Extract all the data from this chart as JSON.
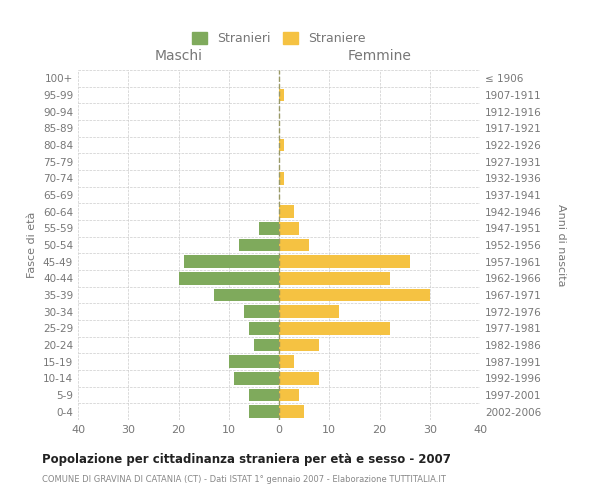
{
  "age_groups": [
    "0-4",
    "5-9",
    "10-14",
    "15-19",
    "20-24",
    "25-29",
    "30-34",
    "35-39",
    "40-44",
    "45-49",
    "50-54",
    "55-59",
    "60-64",
    "65-69",
    "70-74",
    "75-79",
    "80-84",
    "85-89",
    "90-94",
    "95-99",
    "100+"
  ],
  "birth_years": [
    "2002-2006",
    "1997-2001",
    "1992-1996",
    "1987-1991",
    "1982-1986",
    "1977-1981",
    "1972-1976",
    "1967-1971",
    "1962-1966",
    "1957-1961",
    "1952-1956",
    "1947-1951",
    "1942-1946",
    "1937-1941",
    "1932-1936",
    "1927-1931",
    "1922-1926",
    "1917-1921",
    "1912-1916",
    "1907-1911",
    "≤ 1906"
  ],
  "males": [
    6,
    6,
    9,
    10,
    5,
    6,
    7,
    13,
    20,
    19,
    8,
    4,
    0,
    0,
    0,
    0,
    0,
    0,
    0,
    0,
    0
  ],
  "females": [
    5,
    4,
    8,
    3,
    8,
    22,
    12,
    30,
    22,
    26,
    6,
    4,
    3,
    0,
    1,
    0,
    1,
    0,
    0,
    1,
    0
  ],
  "male_color": "#7faa5c",
  "female_color": "#f5c242",
  "title": "Popolazione per cittadinanza straniera per età e sesso - 2007",
  "subtitle": "COMUNE DI GRAVINA DI CATANIA (CT) - Dati ISTAT 1° gennaio 2007 - Elaborazione TUTTITALIA.IT",
  "ylabel_left": "Fasce di età",
  "ylabel_right": "Anni di nascita",
  "xlabel_left": "Maschi",
  "xlabel_right": "Femmine",
  "legend_male": "Stranieri",
  "legend_female": "Straniere",
  "xlim": 40,
  "background_color": "#ffffff",
  "grid_color": "#cccccc",
  "dashed_line_color": "#999966",
  "text_color": "#777777",
  "title_color": "#222222",
  "subtitle_color": "#888888"
}
